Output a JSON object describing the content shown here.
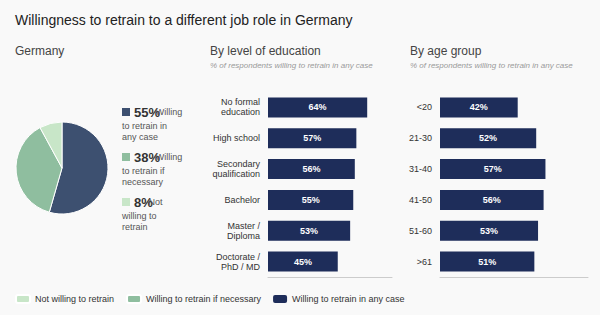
{
  "title": "Willingness to retrain to a different job role in Germany",
  "chart_data": [
    {
      "type": "pie",
      "title": "Germany",
      "categories": [
        "Willing to retrain in any case",
        "Willing to retrain if necessary",
        "Not willing to retrain"
      ],
      "values": [
        55,
        38,
        8
      ],
      "value_labels": [
        "55%",
        "38%",
        "8%"
      ],
      "colors": [
        "#3d5070",
        "#8fbe9f",
        "#c8e6c8"
      ],
      "data_labels": true,
      "legend": "lower left"
    },
    {
      "type": "bar",
      "orientation": "horizontal",
      "title": "By level of education",
      "subtitle": "% of respondents willing to retrain in any case",
      "categories": [
        "No formal\neducation",
        "High school",
        "Secondary\nqualification",
        "Bachelor",
        "Master /\nDiploma",
        "Doctorate /\nPhD / MD"
      ],
      "series": [
        {
          "name": "Willing to retrain in any case",
          "color": "#1e2d5a",
          "values": [
            64,
            57,
            56,
            55,
            53,
            45
          ],
          "value_labels": [
            "64%",
            "57%",
            "56%",
            "55%",
            "53%",
            "45%"
          ]
        }
      ],
      "xlim": [
        0,
        80
      ],
      "grid": false,
      "tick_labels": "y",
      "data_labels": true
    },
    {
      "type": "bar",
      "orientation": "horizontal",
      "title": "By age group",
      "subtitle": "% of respondents willing to retrain in any case",
      "categories": [
        "<20",
        "21-30",
        "31-40",
        "41-50",
        "51-60",
        ">61"
      ],
      "series": [
        {
          "name": "Willing to retrain in any case",
          "color": "#1e2d5a",
          "values": [
            42,
            52,
            57,
            56,
            53,
            51
          ],
          "value_labels": [
            "42%",
            "52%",
            "57%",
            "56%",
            "53%",
            "51%"
          ]
        }
      ],
      "xlim": [
        0,
        80
      ],
      "grid": false,
      "tick_labels": "y",
      "data_labels": true
    }
  ]
}
